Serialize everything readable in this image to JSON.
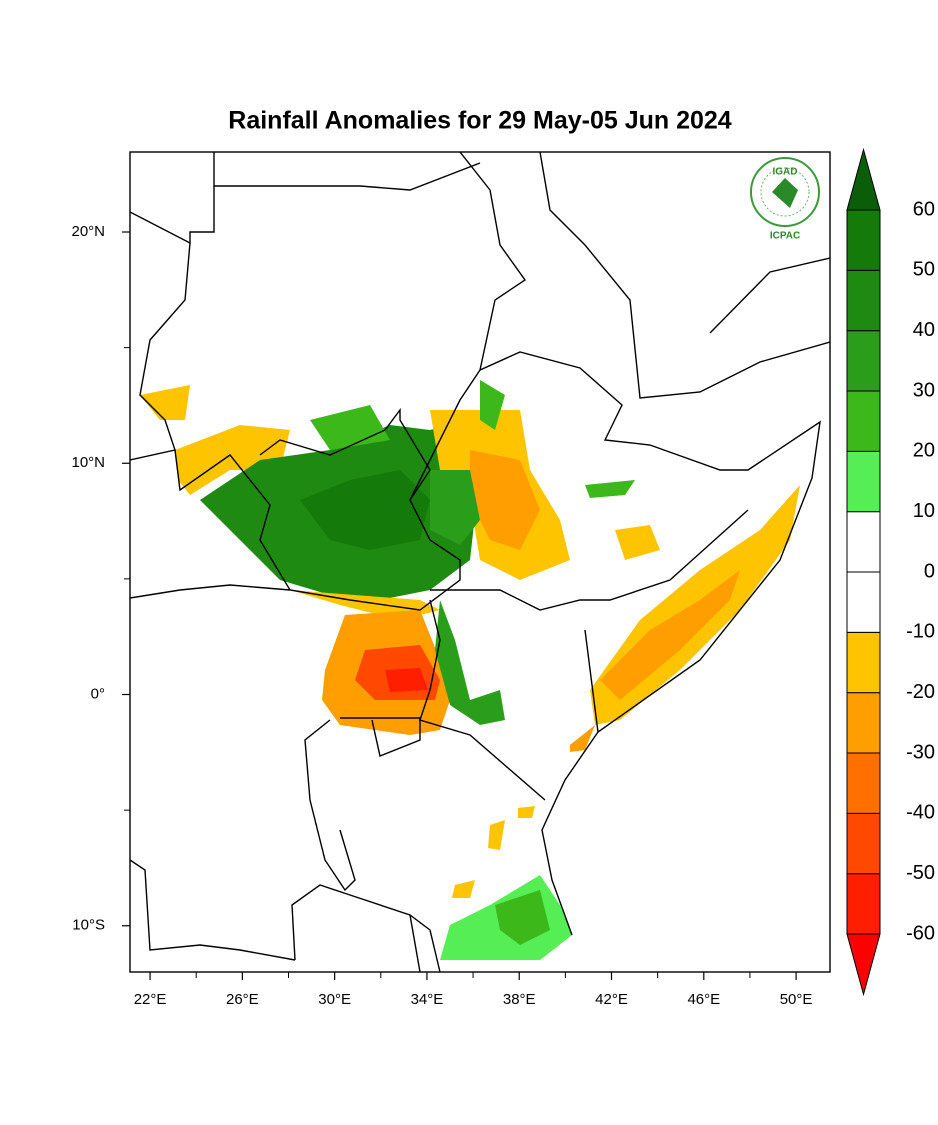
{
  "title": "Rainfall Anomalies for 29 May-05 Jun 2024",
  "map": {
    "xlim": [
      21.13,
      51.47
    ],
    "ylim": [
      -12,
      23.46
    ],
    "xticks": [
      {
        "value": 22,
        "label": "22°E"
      },
      {
        "value": 26,
        "label": "26°E"
      },
      {
        "value": 30,
        "label": "30°E"
      },
      {
        "value": 34,
        "label": "34°E"
      },
      {
        "value": 38,
        "label": "38°E"
      },
      {
        "value": 42,
        "label": "42°E"
      },
      {
        "value": 46,
        "label": "46°E"
      },
      {
        "value": 50,
        "label": "50°E"
      }
    ],
    "xminor": [
      24,
      28,
      32,
      36,
      40,
      44,
      48
    ],
    "yticks": [
      {
        "value": 20,
        "label": "20°N"
      },
      {
        "value": 10,
        "label": "10°N"
      },
      {
        "value": 0,
        "label": "0°"
      },
      {
        "value": -10,
        "label": "10°S"
      }
    ],
    "yminor": [
      15,
      5,
      -5
    ]
  },
  "colorbar": {
    "levels": [
      -60,
      -50,
      -40,
      -30,
      -20,
      -10,
      0,
      10,
      20,
      30,
      40,
      50,
      60
    ],
    "colors": [
      "#ff0000",
      "#ff1e00",
      "#ff4800",
      "#ff7000",
      "#ff9e00",
      "#ffc400",
      "#ffffff",
      "#ffffff",
      "#55ee55",
      "#3cb81a",
      "#2a9e1a",
      "#1f8a12",
      "#147a0a",
      "#0a5e0a"
    ]
  },
  "logo": {
    "top": "IGAD",
    "bottom": "ICPAC"
  }
}
